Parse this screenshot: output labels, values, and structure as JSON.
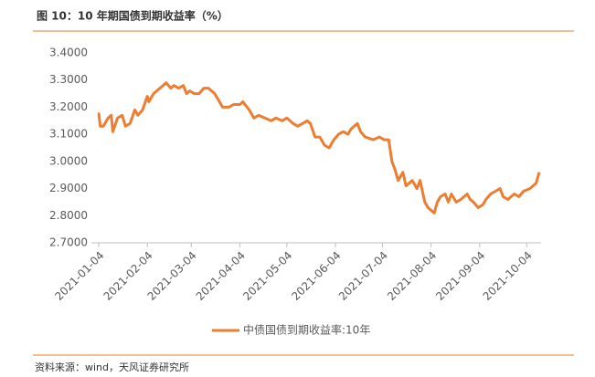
{
  "chart_data": {
    "type": "line",
    "title": "图 10：10 年期国债到期收益率（%）",
    "source": "资料来源：wind，天风证券研究所",
    "x": [
      "2021-01-04",
      "2021-01-05",
      "2021-01-07",
      "2021-01-10",
      "2021-01-12",
      "2021-01-13",
      "2021-01-16",
      "2021-01-19",
      "2021-01-21",
      "2021-01-24",
      "2021-01-27",
      "2021-01-29",
      "2021-02-01",
      "2021-02-04",
      "2021-02-05",
      "2021-02-08",
      "2021-02-12",
      "2021-02-16",
      "2021-02-19",
      "2021-02-21",
      "2021-02-24",
      "2021-02-27",
      "2021-03-01",
      "2021-03-03",
      "2021-03-06",
      "2021-03-09",
      "2021-03-12",
      "2021-03-15",
      "2021-03-19",
      "2021-03-21",
      "2021-03-24",
      "2021-03-28",
      "2021-03-31",
      "2021-04-04",
      "2021-04-06",
      "2021-04-10",
      "2021-04-13",
      "2021-04-16",
      "2021-04-20",
      "2021-04-24",
      "2021-04-27",
      "2021-05-01",
      "2021-05-04",
      "2021-05-08",
      "2021-05-11",
      "2021-05-14",
      "2021-05-17",
      "2021-05-19",
      "2021-05-22",
      "2021-05-25",
      "2021-05-28",
      "2021-05-31",
      "2021-06-03",
      "2021-06-06",
      "2021-06-09",
      "2021-06-12",
      "2021-06-14",
      "2021-06-18",
      "2021-06-20",
      "2021-06-23",
      "2021-06-28",
      "2021-07-02",
      "2021-07-05",
      "2021-07-08",
      "2021-07-10",
      "2021-07-12",
      "2021-07-14",
      "2021-07-17",
      "2021-07-19",
      "2021-07-23",
      "2021-07-26",
      "2021-07-28",
      "2021-07-31",
      "2021-08-02",
      "2021-08-06",
      "2021-08-08",
      "2021-08-10",
      "2021-08-13",
      "2021-08-15",
      "2021-08-17",
      "2021-08-20",
      "2021-08-23",
      "2021-08-27",
      "2021-08-29",
      "2021-08-31",
      "2021-09-03",
      "2021-09-06",
      "2021-09-08",
      "2021-09-11",
      "2021-09-14",
      "2021-09-17",
      "2021-09-19",
      "2021-09-22",
      "2021-09-26",
      "2021-09-29",
      "2021-10-02",
      "2021-10-06",
      "2021-10-10",
      "2021-10-12"
    ],
    "series": [
      {
        "name": "中债国债到期收益率:10年",
        "color": "#ED7D31",
        "values": [
          3.18,
          3.13,
          3.13,
          3.16,
          3.17,
          3.11,
          3.16,
          3.17,
          3.13,
          3.14,
          3.19,
          3.17,
          3.19,
          3.24,
          3.22,
          3.25,
          3.27,
          3.29,
          3.27,
          3.28,
          3.27,
          3.28,
          3.25,
          3.26,
          3.25,
          3.25,
          3.27,
          3.27,
          3.25,
          3.23,
          3.2,
          3.2,
          3.21,
          3.21,
          3.22,
          3.19,
          3.16,
          3.17,
          3.16,
          3.15,
          3.16,
          3.15,
          3.16,
          3.14,
          3.13,
          3.14,
          3.15,
          3.14,
          3.09,
          3.09,
          3.06,
          3.05,
          3.08,
          3.1,
          3.11,
          3.1,
          3.12,
          3.14,
          3.11,
          3.09,
          3.08,
          3.09,
          3.08,
          3.08,
          3.0,
          2.97,
          2.93,
          2.96,
          2.91,
          2.93,
          2.9,
          2.93,
          2.85,
          2.83,
          2.81,
          2.85,
          2.87,
          2.88,
          2.85,
          2.88,
          2.85,
          2.86,
          2.88,
          2.86,
          2.85,
          2.83,
          2.84,
          2.86,
          2.88,
          2.89,
          2.9,
          2.87,
          2.86,
          2.88,
          2.87,
          2.89,
          2.9,
          2.92,
          2.96
        ]
      }
    ],
    "xlim": [
      "2021-01-04",
      "2021-10-12"
    ],
    "xticks": [
      "2021-01-04",
      "2021-02-04",
      "2021-03-04",
      "2021-04-04",
      "2021-05-04",
      "2021-06-04",
      "2021-07-04",
      "2021-08-04",
      "2021-09-04",
      "2021-10-04"
    ],
    "ylim": [
      2.7,
      3.4
    ],
    "yticks": [
      {
        "value": 2.7,
        "label": "2.7000"
      },
      {
        "value": 2.8,
        "label": "2.8000"
      },
      {
        "value": 2.9,
        "label": "2.9000"
      },
      {
        "value": 3.0,
        "label": "3.0000"
      },
      {
        "value": 3.1,
        "label": "3.1000"
      },
      {
        "value": 3.2,
        "label": "3.2000"
      },
      {
        "value": 3.3,
        "label": "3.3000"
      },
      {
        "value": 3.4,
        "label": "3.4000"
      }
    ]
  }
}
